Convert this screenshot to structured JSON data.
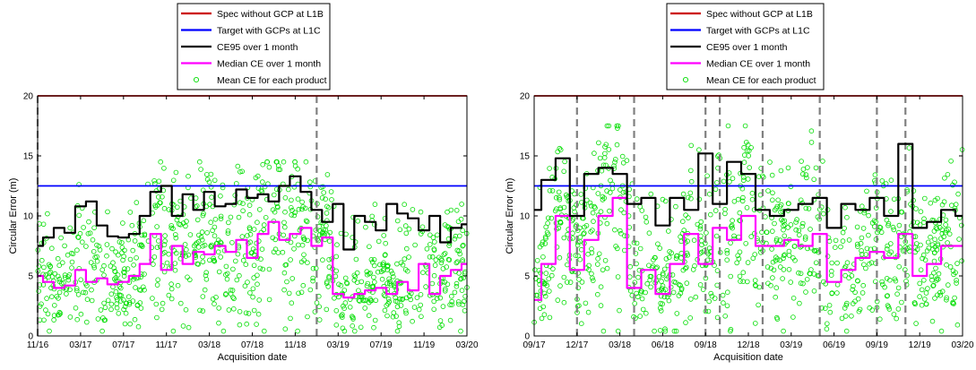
{
  "chart_data": [
    {
      "type": "line",
      "xlabel": "Acquisition date",
      "ylabel": "Circular Error (m)",
      "xlim": [
        "2016-11",
        "2020-03"
      ],
      "ylim": [
        0,
        20
      ],
      "yticks": [
        0,
        5,
        10,
        15,
        20
      ],
      "xtick_labels": [
        "11/16",
        "03/17",
        "07/17",
        "11/17",
        "03/18",
        "07/18",
        "11/18",
        "03/19",
        "07/19",
        "11/19",
        "03/20"
      ],
      "grid": false,
      "legend_position": "top-center-outside",
      "legend": [
        "Spec without GCP at L1B",
        "Target with GCPs at L1C",
        "CE95 over 1 month",
        "Median CE over 1 month",
        "Mean CE for each product"
      ],
      "vertical_dashed_lines": [
        "2016-11",
        "2019-01"
      ],
      "series": [
        {
          "name": "Spec without GCP at L1B",
          "color": "#cc0000",
          "x": [
            "2016-11",
            "2020-03"
          ],
          "y": [
            20,
            20
          ]
        },
        {
          "name": "Target with GCPs at L1C",
          "color": "#0000ff",
          "x": [
            "2016-11",
            "2020-03"
          ],
          "y": [
            12.5,
            12.5
          ]
        },
        {
          "name": "CE95 over 1 month",
          "color": "#000000",
          "x": [
            "2016-11",
            "2016-12",
            "2017-01",
            "2017-02",
            "2017-03",
            "2017-04",
            "2017-05",
            "2017-06",
            "2017-07",
            "2017-08",
            "2017-09",
            "2017-10",
            "2017-11",
            "2017-12",
            "2018-01",
            "2018-02",
            "2018-03",
            "2018-04",
            "2018-05",
            "2018-06",
            "2018-07",
            "2018-08",
            "2018-09",
            "2018-10",
            "2018-11",
            "2018-12",
            "2019-01",
            "2019-02",
            "2019-03",
            "2019-04",
            "2019-05",
            "2019-06",
            "2019-07",
            "2019-08",
            "2019-09",
            "2019-10",
            "2019-11",
            "2019-12",
            "2020-01",
            "2020-02",
            "2020-03"
          ],
          "y": [
            7.5,
            8.2,
            9.0,
            8.6,
            10.8,
            11.2,
            9.2,
            8.3,
            8.2,
            8.5,
            10.0,
            12.0,
            12.5,
            10.0,
            11.8,
            10.5,
            12.0,
            10.8,
            11.0,
            12.2,
            11.5,
            11.8,
            11.2,
            12.5,
            13.3,
            12.0,
            10.5,
            9.5,
            11.0,
            7.2,
            10.0,
            9.5,
            8.8,
            11.0,
            10.2,
            9.8,
            8.8,
            10.0,
            7.8,
            9.0,
            9.3
          ]
        },
        {
          "name": "Median CE over 1 month",
          "color": "#ff00ff",
          "x": [
            "2016-11",
            "2016-12",
            "2017-01",
            "2017-02",
            "2017-03",
            "2017-04",
            "2017-05",
            "2017-06",
            "2017-07",
            "2017-08",
            "2017-09",
            "2017-10",
            "2017-11",
            "2017-12",
            "2018-01",
            "2018-02",
            "2018-03",
            "2018-04",
            "2018-05",
            "2018-06",
            "2018-07",
            "2018-08",
            "2018-09",
            "2018-10",
            "2018-11",
            "2018-12",
            "2019-01",
            "2019-02",
            "2019-03",
            "2019-04",
            "2019-05",
            "2019-06",
            "2019-07",
            "2019-08",
            "2019-09",
            "2019-10",
            "2019-11",
            "2019-12",
            "2020-01",
            "2020-02",
            "2020-03"
          ],
          "y": [
            5.0,
            4.5,
            4.0,
            4.2,
            5.5,
            4.5,
            4.8,
            4.3,
            4.5,
            5.0,
            6.0,
            8.5,
            5.5,
            7.5,
            6.0,
            7.0,
            6.8,
            7.5,
            7.0,
            8.0,
            6.5,
            8.5,
            9.5,
            8.0,
            8.5,
            9.0,
            7.5,
            8.2,
            3.5,
            3.2,
            3.5,
            3.8,
            4.0,
            3.5,
            4.5,
            3.8,
            6.0,
            3.5,
            5.0,
            5.5,
            6.0
          ]
        },
        {
          "name": "Mean CE for each product",
          "color": "#00dd00",
          "marker": "circle",
          "note": "scattered points, roughly 0.5 to 14.5 m"
        }
      ]
    },
    {
      "type": "line",
      "xlabel": "Acquisition date",
      "ylabel": "Circular Error (m)",
      "xlim": [
        "2017-09",
        "2020-03"
      ],
      "ylim": [
        0,
        20
      ],
      "yticks": [
        0,
        5,
        10,
        15,
        20
      ],
      "xtick_labels": [
        "09/17",
        "12/17",
        "03/18",
        "06/18",
        "09/18",
        "12/18",
        "03/19",
        "06/19",
        "09/19",
        "12/19",
        "03/20"
      ],
      "grid": false,
      "legend_position": "top-center-outside",
      "legend": [
        "Spec without GCP at L1B",
        "Target with GCPs at L1C",
        "CE95 over 1 month",
        "Median CE over 1 month",
        "Mean CE for each product"
      ],
      "vertical_dashed_lines": [
        "2017-12",
        "2018-04",
        "2018-09",
        "2018-10",
        "2019-01",
        "2019-05",
        "2019-09",
        "2019-11"
      ],
      "series": [
        {
          "name": "Spec without GCP at L1B",
          "color": "#cc0000",
          "x": [
            "2017-09",
            "2020-03"
          ],
          "y": [
            20,
            20
          ]
        },
        {
          "name": "Target with GCPs at L1C",
          "color": "#0000ff",
          "x": [
            "2017-09",
            "2020-03"
          ],
          "y": [
            12.5,
            12.5
          ]
        },
        {
          "name": "CE95 over 1 month",
          "color": "#000000",
          "x": [
            "2017-09",
            "2017-10",
            "2017-11",
            "2017-12",
            "2018-01",
            "2018-02",
            "2018-03",
            "2018-04",
            "2018-05",
            "2018-06",
            "2018-07",
            "2018-08",
            "2018-09",
            "2018-10",
            "2018-11",
            "2018-12",
            "2019-01",
            "2019-02",
            "2019-03",
            "2019-04",
            "2019-05",
            "2019-06",
            "2019-07",
            "2019-08",
            "2019-09",
            "2019-10",
            "2019-11",
            "2019-12",
            "2020-01",
            "2020-02",
            "2020-03"
          ],
          "y": [
            10.5,
            13.0,
            14.8,
            10.0,
            13.5,
            14.0,
            13.5,
            11.0,
            11.5,
            9.2,
            11.5,
            10.5,
            15.2,
            11.0,
            14.5,
            13.5,
            10.5,
            10.0,
            10.5,
            11.0,
            11.5,
            9.0,
            11.0,
            10.5,
            11.5,
            10.0,
            16.0,
            9.0,
            9.5,
            10.5,
            10.0
          ]
        },
        {
          "name": "Median CE over 1 month",
          "color": "#ff00ff",
          "x": [
            "2017-09",
            "2017-10",
            "2017-11",
            "2017-12",
            "2018-01",
            "2018-02",
            "2018-03",
            "2018-04",
            "2018-05",
            "2018-06",
            "2018-07",
            "2018-08",
            "2018-09",
            "2018-10",
            "2018-11",
            "2018-12",
            "2019-01",
            "2019-02",
            "2019-03",
            "2019-04",
            "2019-05",
            "2019-06",
            "2019-07",
            "2019-08",
            "2019-09",
            "2019-10",
            "2019-11",
            "2019-12",
            "2020-01",
            "2020-02",
            "2020-03"
          ],
          "y": [
            3.0,
            6.0,
            10.0,
            5.5,
            8.0,
            10.0,
            11.5,
            4.0,
            5.5,
            3.5,
            6.0,
            8.5,
            6.0,
            9.0,
            8.0,
            10.0,
            7.5,
            7.5,
            8.0,
            7.5,
            8.5,
            4.5,
            5.5,
            6.5,
            7.0,
            6.5,
            8.5,
            5.0,
            6.0,
            7.5,
            7.5
          ]
        },
        {
          "name": "Mean CE for each product",
          "color": "#00dd00",
          "marker": "circle",
          "note": "scattered points, roughly 0.5 to 17.5 m"
        }
      ]
    }
  ]
}
